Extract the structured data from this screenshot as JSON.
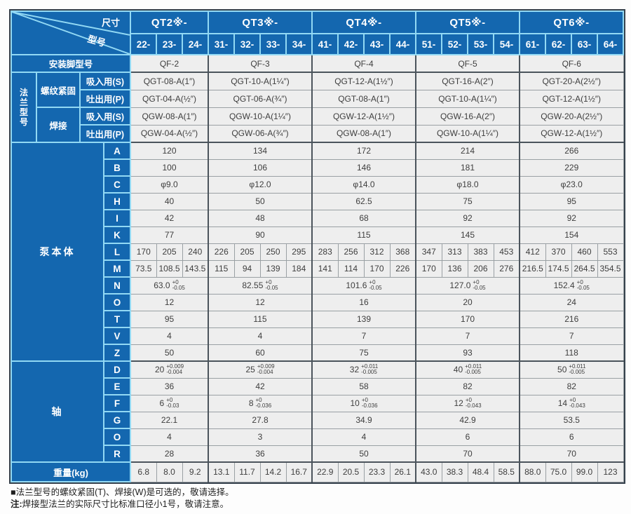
{
  "header": {
    "corner_top": "尺寸",
    "corner_bottom": "型号",
    "groups": [
      {
        "label": "QT2※-",
        "subs": [
          "22-",
          "23-",
          "24-"
        ]
      },
      {
        "label": "QT3※-",
        "subs": [
          "31-",
          "32-",
          "33-",
          "34-"
        ]
      },
      {
        "label": "QT4※-",
        "subs": [
          "41-",
          "42-",
          "43-",
          "44-"
        ]
      },
      {
        "label": "QT5※-",
        "subs": [
          "51-",
          "52-",
          "53-",
          "54-"
        ]
      },
      {
        "label": "QT6※-",
        "subs": [
          "61-",
          "62-",
          "63-",
          "64-"
        ]
      }
    ]
  },
  "mount_row": {
    "label": "安装脚型号",
    "values": [
      "QF-2",
      "QF-3",
      "QF-4",
      "QF-5",
      "QF-6"
    ]
  },
  "flange": {
    "section_label": "法兰型号",
    "methods": [
      {
        "label": "螺纹紧固",
        "rows": [
          {
            "label": "吸入用(S)",
            "values": [
              "QGT-08-A(1″)",
              "QGT-10-A(1¼″)",
              "QGT-12-A(1½″)",
              "QGT-16-A(2″)",
              "QGT-20-A(2½″)"
            ]
          },
          {
            "label": "吐出用(P)",
            "values": [
              "QGT-04-A(½″)",
              "QGT-06-A(¾″)",
              "QGT-08-A(1″)",
              "QGT-10-A(1¼″)",
              "QGT-12-A(1½″)"
            ]
          }
        ]
      },
      {
        "label": "焊接",
        "rows": [
          {
            "label": "吸入用(S)",
            "values": [
              "QGW-08-A(1″)",
              "QGW-10-A(1¼″)",
              "QGW-12-A(1½″)",
              "QGW-16-A(2″)",
              "QGW-20-A(2½″)"
            ]
          },
          {
            "label": "吐出用(P)",
            "values": [
              "QGW-04-A(½″)",
              "QGW-06-A(¾″)",
              "QGW-08-A(1″)",
              "QGW-10-A(1¼″)",
              "QGW-12-A(1½″)"
            ]
          }
        ]
      }
    ]
  },
  "pump_body": {
    "section_label": "泵本体",
    "rows": [
      {
        "label": "A",
        "type": "group",
        "values": [
          "120",
          "134",
          "172",
          "214",
          "266"
        ]
      },
      {
        "label": "B",
        "type": "group",
        "values": [
          "100",
          "106",
          "146",
          "181",
          "229"
        ]
      },
      {
        "label": "C",
        "type": "group",
        "values": [
          "φ9.0",
          "φ12.0",
          "φ14.0",
          "φ18.0",
          "φ23.0"
        ]
      },
      {
        "label": "H",
        "type": "group",
        "values": [
          "40",
          "50",
          "62.5",
          "75",
          "95"
        ]
      },
      {
        "label": "I",
        "type": "group",
        "values": [
          "42",
          "48",
          "68",
          "92",
          "92"
        ]
      },
      {
        "label": "K",
        "type": "group",
        "values": [
          "77",
          "90",
          "115",
          "145",
          "154"
        ]
      },
      {
        "label": "L",
        "type": "per",
        "values": [
          "170",
          "205",
          "240",
          "226",
          "205",
          "250",
          "295",
          "283",
          "256",
          "312",
          "368",
          "347",
          "313",
          "383",
          "453",
          "412",
          "370",
          "460",
          "553"
        ]
      },
      {
        "label": "M",
        "type": "per",
        "values": [
          "73.5",
          "108.5",
          "143.5",
          "115",
          "94",
          "139",
          "184",
          "141",
          "114",
          "170",
          "226",
          "170",
          "136",
          "206",
          "276",
          "216.5",
          "174.5",
          "264.5",
          "354.5"
        ]
      },
      {
        "label": "N",
        "type": "tol",
        "values": [
          {
            "v": "63.0",
            "p": "+0",
            "m": "-0.05"
          },
          {
            "v": "82.55",
            "p": "+0",
            "m": "-0.05"
          },
          {
            "v": "101.6",
            "p": "+0",
            "m": "-0.05"
          },
          {
            "v": "127.0",
            "p": "+0",
            "m": "-0.05"
          },
          {
            "v": "152.4",
            "p": "+0",
            "m": "-0.05"
          }
        ]
      },
      {
        "label": "O",
        "type": "group",
        "values": [
          "12",
          "12",
          "16",
          "20",
          "24"
        ]
      },
      {
        "label": "T",
        "type": "group",
        "values": [
          "95",
          "115",
          "139",
          "170",
          "216"
        ]
      },
      {
        "label": "V",
        "type": "group",
        "values": [
          "4",
          "4",
          "7",
          "7",
          "7"
        ]
      },
      {
        "label": "Z",
        "type": "group",
        "values": [
          "50",
          "60",
          "75",
          "93",
          "118"
        ]
      }
    ]
  },
  "shaft": {
    "section_label": "轴",
    "rows": [
      {
        "label": "D",
        "type": "tol",
        "values": [
          {
            "v": "20",
            "p": "+0.009",
            "m": "-0.004"
          },
          {
            "v": "25",
            "p": "+0.009",
            "m": "-0.004"
          },
          {
            "v": "32",
            "p": "+0.011",
            "m": "-0.005"
          },
          {
            "v": "40",
            "p": "+0.011",
            "m": "-0.005"
          },
          {
            "v": "50",
            "p": "+0.011",
            "m": "-0.005"
          }
        ]
      },
      {
        "label": "E",
        "type": "group",
        "values": [
          "36",
          "42",
          "58",
          "82",
          "82"
        ]
      },
      {
        "label": "F",
        "type": "tol",
        "values": [
          {
            "v": "6",
            "p": "+0",
            "m": "-0.03"
          },
          {
            "v": "8",
            "p": "+0",
            "m": "-0.036"
          },
          {
            "v": "10",
            "p": "+0",
            "m": "-0.036"
          },
          {
            "v": "12",
            "p": "+0",
            "m": "-0.043"
          },
          {
            "v": "14",
            "p": "+0",
            "m": "-0.043"
          }
        ]
      },
      {
        "label": "G",
        "type": "group",
        "values": [
          "22.1",
          "27.8",
          "34.9",
          "42.9",
          "53.5"
        ]
      },
      {
        "label": "O",
        "type": "group",
        "values": [
          "4",
          "3",
          "4",
          "6",
          "6"
        ]
      },
      {
        "label": "R",
        "type": "group",
        "values": [
          "28",
          "36",
          "50",
          "70",
          "70"
        ]
      }
    ]
  },
  "weight_row": {
    "label": "重量(kg)",
    "values": [
      "6.8",
      "8.0",
      "9.2",
      "13.1",
      "11.7",
      "14.2",
      "16.7",
      "22.9",
      "20.5",
      "23.3",
      "26.1",
      "43.0",
      "38.3",
      "48.4",
      "58.5",
      "88.0",
      "75.0",
      "99.0",
      "123"
    ]
  },
  "notes": [
    {
      "bullet": "■",
      "text": "法兰型号的螺纹紧固(T)、焊接(W)是可选的，敬请选择。"
    },
    {
      "bullet": "注:",
      "text": "焊接型法兰的实际尺寸比标准口径小1号，敬请注意。"
    }
  ],
  "colors": {
    "header_blue": "#1467af",
    "light_blue_border": "#92d9f4",
    "cell_background": "#eeeeee",
    "dark_line": "#4b545c",
    "text_dark": "#3e3e3e"
  }
}
